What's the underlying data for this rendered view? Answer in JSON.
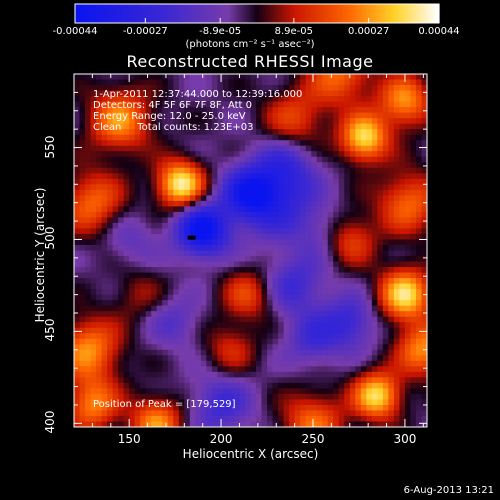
{
  "colorbar": {
    "ticks": [
      "-0.00044",
      "-0.00027",
      "-8.9e-05",
      "8.9e-05",
      "0.00027",
      "0.00044"
    ],
    "unit": "(photons cm⁻² s⁻¹ asec⁻²)"
  },
  "chart_data": {
    "type": "heatmap",
    "title": "Reconstructed RHESSI Image",
    "xlabel": "Heliocentric X (arcsec)",
    "ylabel": "Heliocentric Y (arcsec)",
    "xlim": [
      120,
      312
    ],
    "ylim": [
      398,
      590
    ],
    "xticks": [
      "150",
      "200",
      "250",
      "300"
    ],
    "yticks": [
      "400",
      "450",
      "500",
      "550"
    ],
    "clim": [
      -0.00044,
      0.00044
    ],
    "annotations": {
      "time": "1-Apr-2011 12:37:44.000 to 12:39:16.000",
      "detectors": "Detectors: 4F 5F 6F 7F 8F, Att 0",
      "energy": "Energy Range: 12.0 - 25.0 keV",
      "clean": "Clean     Total counts: 1.23E+03",
      "peak": "Position of Peak = [179,529]"
    },
    "blobs": [
      {
        "x": 178,
        "y": 530,
        "v": 0.00044,
        "r": 9
      },
      {
        "x": 145,
        "y": 565,
        "v": 0.0003,
        "r": 12
      },
      {
        "x": 130,
        "y": 520,
        "v": 0.00025,
        "r": 12
      },
      {
        "x": 128,
        "y": 440,
        "v": 0.0003,
        "r": 12
      },
      {
        "x": 130,
        "y": 410,
        "v": 0.00028,
        "r": 10
      },
      {
        "x": 165,
        "y": 400,
        "v": 0.0003,
        "r": 10
      },
      {
        "x": 240,
        "y": 565,
        "v": 0.0002,
        "r": 12
      },
      {
        "x": 265,
        "y": 590,
        "v": 0.00025,
        "r": 12
      },
      {
        "x": 278,
        "y": 555,
        "v": 0.0004,
        "r": 9
      },
      {
        "x": 300,
        "y": 575,
        "v": 0.0003,
        "r": 10
      },
      {
        "x": 302,
        "y": 520,
        "v": 0.00025,
        "r": 12
      },
      {
        "x": 300,
        "y": 470,
        "v": 0.0004,
        "r": 10
      },
      {
        "x": 270,
        "y": 500,
        "v": 0.0002,
        "r": 10
      },
      {
        "x": 285,
        "y": 415,
        "v": 0.0004,
        "r": 9
      },
      {
        "x": 310,
        "y": 440,
        "v": 0.0003,
        "r": 10
      },
      {
        "x": 250,
        "y": 400,
        "v": 0.00025,
        "r": 12
      },
      {
        "x": 215,
        "y": 470,
        "v": 0.0002,
        "r": 10
      },
      {
        "x": 205,
        "y": 440,
        "v": 0.00015,
        "r": 10
      },
      {
        "x": 155,
        "y": 470,
        "v": 0.0001,
        "r": 10
      },
      {
        "x": 230,
        "y": 520,
        "v": -0.0002,
        "r": 14
      },
      {
        "x": 190,
        "y": 505,
        "v": -0.00042,
        "r": 10
      },
      {
        "x": 215,
        "y": 525,
        "v": -0.0003,
        "r": 10
      },
      {
        "x": 235,
        "y": 540,
        "v": -0.00018,
        "r": 12
      },
      {
        "x": 240,
        "y": 475,
        "v": -0.00018,
        "r": 12
      },
      {
        "x": 270,
        "y": 455,
        "v": -0.0002,
        "r": 10
      },
      {
        "x": 250,
        "y": 445,
        "v": -0.00016,
        "r": 10
      },
      {
        "x": 200,
        "y": 410,
        "v": -0.00018,
        "r": 12
      },
      {
        "x": 175,
        "y": 455,
        "v": -0.00012,
        "r": 10
      },
      {
        "x": 255,
        "y": 505,
        "v": -0.0001,
        "r": 10
      },
      {
        "x": 150,
        "y": 500,
        "v": -0.0001,
        "r": 10
      }
    ]
  },
  "timestamp": "6-Aug-2013 13:21"
}
